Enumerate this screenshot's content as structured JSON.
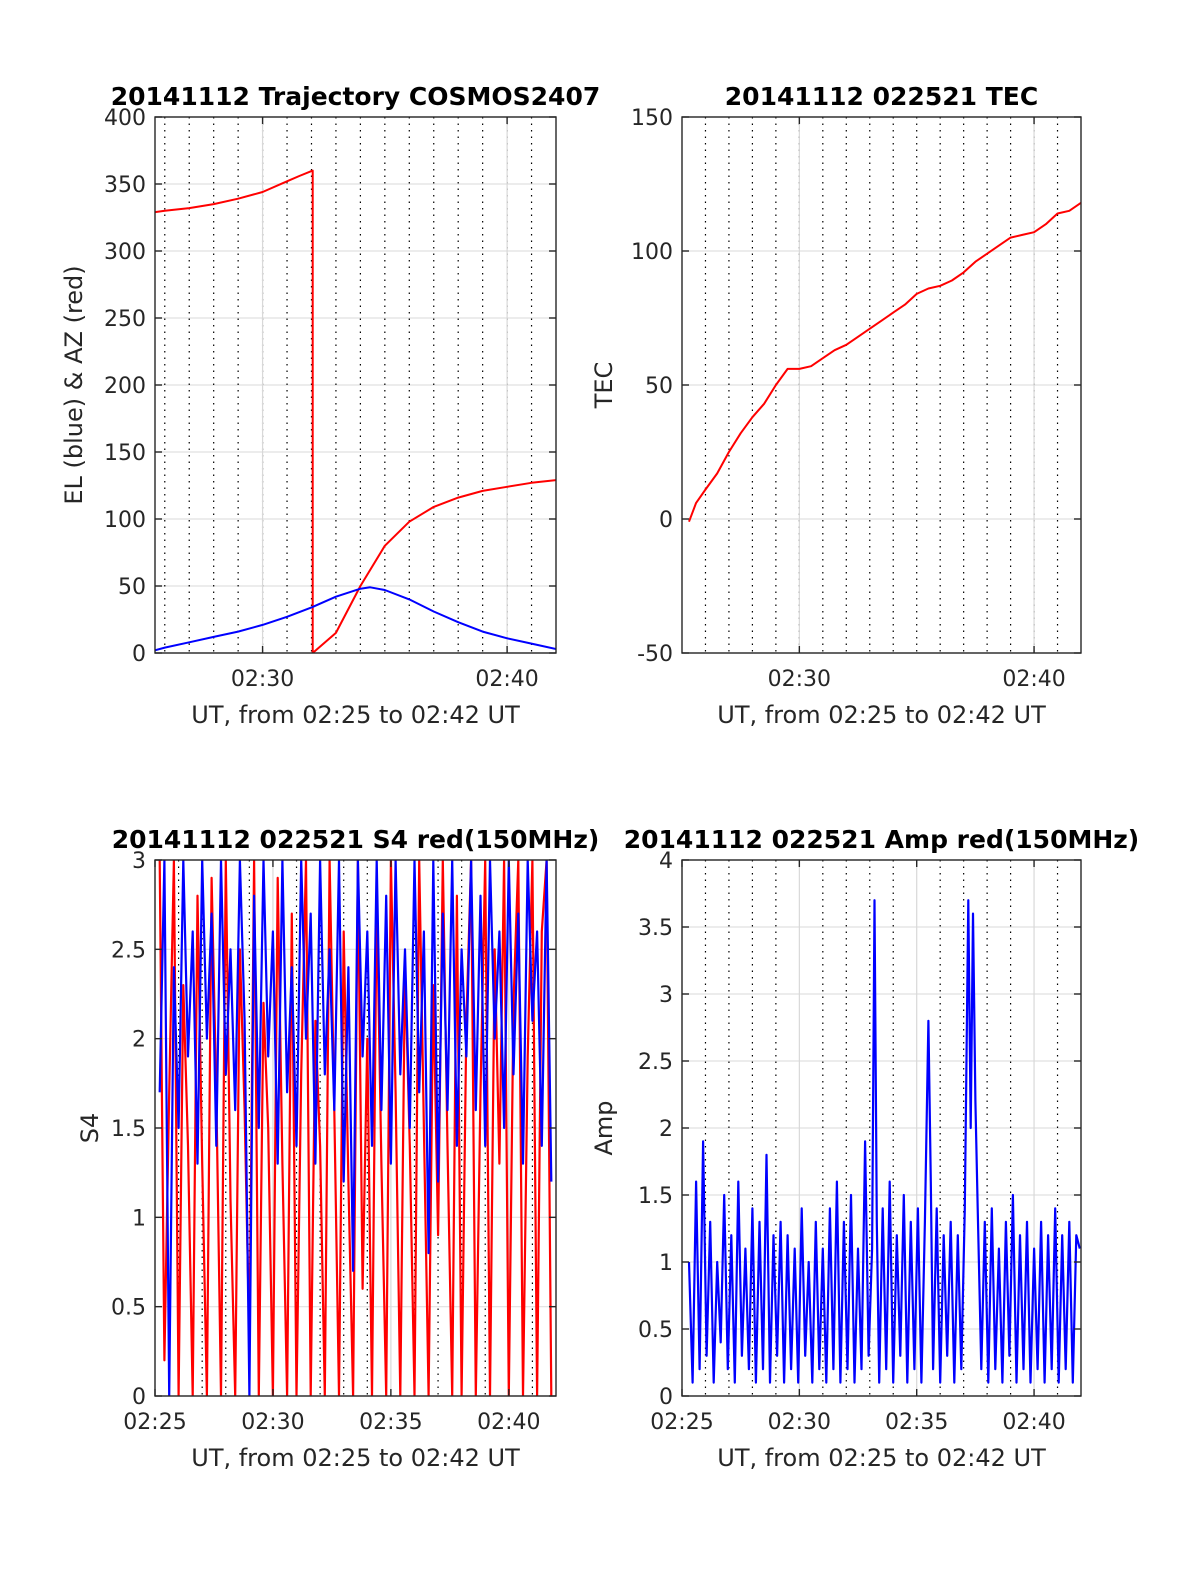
{
  "chart_data": [
    {
      "id": "trajectory",
      "type": "line",
      "title": "20141112 Trajectory COSMOS2407",
      "xlabel": "UT, from 02:25 to 02:42 UT",
      "ylabel": "EL (blue) & AZ (red)",
      "xlim": [
        25.6,
        42.0
      ],
      "ylim": [
        0,
        400
      ],
      "xtick_values": [
        30,
        40
      ],
      "xtick_labels": [
        "02:30",
        "02:40"
      ],
      "ytick_values": [
        0,
        50,
        100,
        150,
        200,
        250,
        300,
        350,
        400
      ],
      "ytick_labels": [
        "0",
        "50",
        "100",
        "150",
        "200",
        "250",
        "300",
        "350",
        "400"
      ],
      "minor_grid_x": [
        26,
        27,
        28,
        29,
        30,
        31,
        32,
        33,
        34,
        35,
        36,
        37,
        38,
        39,
        40,
        41
      ],
      "grid": true,
      "series": [
        {
          "color": "#ff0000",
          "x": [
            25.6,
            26,
            27,
            28,
            29,
            30,
            31,
            31.5,
            32.05,
            32.05,
            33,
            34,
            35,
            36,
            37,
            38,
            39,
            40,
            41,
            42
          ],
          "y": [
            329,
            330,
            332,
            335,
            339,
            344,
            352,
            356,
            360,
            0,
            15,
            50,
            80,
            98,
            109,
            116,
            121,
            124,
            127,
            129
          ]
        },
        {
          "color": "#0000ff",
          "x": [
            25.6,
            26,
            27,
            28,
            29,
            30,
            31,
            32,
            33,
            34,
            34.4,
            35,
            36,
            37,
            38,
            39,
            40,
            41,
            42
          ],
          "y": [
            2,
            4,
            8,
            12,
            16,
            21,
            27,
            34,
            42,
            48,
            49,
            47,
            40,
            31,
            23,
            16,
            11,
            7,
            3
          ]
        }
      ]
    },
    {
      "id": "tec",
      "type": "line",
      "title": "20141112 022521 TEC",
      "xlabel": "UT, from 02:25 to 02:42 UT",
      "ylabel": "TEC",
      "xlim": [
        25.0,
        42.0
      ],
      "ylim": [
        -50,
        150
      ],
      "xtick_values": [
        30,
        40
      ],
      "xtick_labels": [
        "02:30",
        "02:40"
      ],
      "ytick_values": [
        -50,
        0,
        50,
        100,
        150
      ],
      "ytick_labels": [
        "-50",
        "0",
        "50",
        "100",
        "150"
      ],
      "minor_grid_x": [
        26,
        27,
        28,
        29,
        30,
        31,
        32,
        33,
        34,
        35,
        36,
        37,
        38,
        39,
        40,
        41
      ],
      "grid": true,
      "series": [
        {
          "color": "#ff0000",
          "x": [
            25.3,
            25.6,
            26,
            26.5,
            27,
            27.5,
            28,
            28.5,
            29,
            29.5,
            30,
            30.5,
            31,
            31.5,
            32,
            32.5,
            33,
            33.5,
            34,
            34.5,
            35,
            35.5,
            36,
            36.5,
            37,
            37.5,
            38,
            38.5,
            39,
            39.5,
            40,
            40.5,
            41,
            41.5,
            42
          ],
          "y": [
            -1,
            6,
            11,
            17,
            25,
            32,
            38,
            43,
            50,
            56,
            56,
            57,
            60,
            63,
            65,
            68,
            71,
            74,
            77,
            80,
            84,
            86,
            87,
            89,
            92,
            96,
            99,
            102,
            105,
            106,
            107,
            110,
            114,
            115,
            118
          ]
        }
      ]
    },
    {
      "id": "s4",
      "type": "line",
      "title": "20141112 022521 S4 red(150MHz)",
      "xlabel": "UT, from 02:25 to 02:42 UT",
      "ylabel": "S4",
      "xlim": [
        25.0,
        42.0
      ],
      "ylim": [
        0,
        3
      ],
      "xtick_values": [
        25,
        30,
        35,
        40
      ],
      "xtick_labels": [
        "02:25",
        "02:30",
        "02:35",
        "02:40"
      ],
      "ytick_values": [
        0,
        0.5,
        1,
        1.5,
        2,
        2.5,
        3
      ],
      "ytick_labels": [
        "0",
        "0.5",
        "1",
        "1.5",
        "2",
        "2.5",
        "3"
      ],
      "minor_grid_x": [
        26,
        27,
        28,
        29,
        31,
        32,
        33,
        34,
        36,
        37,
        38,
        39,
        41
      ],
      "grid": true,
      "series": [
        {
          "color": "#ff0000",
          "x": [
            25.2,
            25.4,
            25.6,
            25.8,
            26.0,
            26.2,
            26.4,
            26.6,
            26.8,
            27.0,
            27.2,
            27.4,
            27.6,
            27.8,
            28.0,
            28.2,
            28.4,
            28.6,
            28.8,
            29.0,
            29.2,
            29.4,
            29.6,
            29.8,
            30.0,
            30.2,
            30.4,
            30.6,
            30.8,
            31.0,
            31.2,
            31.4,
            31.6,
            31.8,
            32.0,
            32.2,
            32.4,
            32.6,
            32.8,
            33.0,
            33.2,
            33.4,
            33.6,
            33.8,
            34.0,
            34.2,
            34.4,
            34.6,
            34.8,
            35.0,
            35.2,
            35.4,
            35.6,
            35.8,
            36.0,
            36.2,
            36.4,
            36.6,
            36.8,
            37.0,
            37.2,
            37.4,
            37.6,
            37.8,
            38.0,
            38.2,
            38.4,
            38.6,
            38.8,
            39.0,
            39.2,
            39.4,
            39.6,
            39.8,
            40.0,
            40.2,
            40.4,
            40.6,
            40.8,
            41.0,
            41.2,
            41.4,
            41.6,
            41.8
          ],
          "y": [
            3.0,
            0.2,
            1.7,
            3.0,
            0.0,
            2.3,
            1.4,
            0.0,
            2.8,
            1.3,
            0.0,
            2.9,
            1.7,
            0.0,
            3.0,
            1.1,
            0.0,
            2.5,
            1.6,
            0.3,
            3.0,
            0.0,
            2.2,
            1.5,
            0.0,
            2.9,
            1.3,
            0.0,
            2.7,
            0.0,
            1.8,
            3.0,
            0.0,
            2.1,
            1.4,
            0.0,
            3.0,
            1.6,
            0.0,
            2.6,
            1.2,
            0.0,
            3.0,
            0.6,
            2.0,
            0.0,
            2.8,
            1.3,
            0.0,
            3.0,
            1.7,
            0.0,
            2.4,
            1.4,
            0.0,
            3.0,
            1.5,
            0.0,
            2.3,
            0.9,
            3.0,
            1.4,
            0.0,
            2.8,
            0.0,
            2.1,
            3.0,
            0.0,
            1.7,
            3.0,
            0.0,
            2.5,
            1.3,
            3.0,
            0.0,
            2.2,
            3.0,
            0.0,
            1.9,
            3.0,
            0.0,
            2.6,
            3.0,
            0.0
          ]
        },
        {
          "color": "#0000ff",
          "x": [
            25.2,
            25.4,
            25.6,
            25.8,
            26.0,
            26.2,
            26.4,
            26.6,
            26.8,
            27.0,
            27.2,
            27.4,
            27.6,
            27.8,
            28.0,
            28.2,
            28.4,
            28.6,
            28.8,
            29.0,
            29.2,
            29.4,
            29.6,
            29.8,
            30.0,
            30.2,
            30.4,
            30.6,
            30.8,
            31.0,
            31.2,
            31.4,
            31.6,
            31.8,
            32.0,
            32.2,
            32.4,
            32.6,
            32.8,
            33.0,
            33.2,
            33.4,
            33.6,
            33.8,
            34.0,
            34.2,
            34.4,
            34.6,
            34.8,
            35.0,
            35.2,
            35.4,
            35.6,
            35.8,
            36.0,
            36.2,
            36.4,
            36.6,
            36.8,
            37.0,
            37.2,
            37.4,
            37.6,
            37.8,
            38.0,
            38.2,
            38.4,
            38.6,
            38.8,
            39.0,
            39.2,
            39.4,
            39.6,
            39.8,
            40.0,
            40.2,
            40.4,
            40.6,
            40.8,
            41.0,
            41.2,
            41.4,
            41.6,
            41.8
          ],
          "y": [
            1.7,
            3.0,
            0.0,
            2.4,
            1.5,
            3.0,
            1.9,
            2.6,
            1.3,
            3.0,
            2.0,
            2.7,
            1.4,
            3.0,
            1.8,
            2.5,
            1.6,
            3.0,
            2.1,
            0.0,
            2.8,
            1.5,
            3.0,
            1.9,
            2.6,
            1.3,
            3.0,
            1.7,
            2.4,
            1.4,
            3.0,
            2.0,
            2.7,
            1.3,
            3.0,
            1.8,
            2.5,
            1.6,
            3.0,
            1.2,
            2.4,
            0.7,
            3.0,
            1.9,
            2.6,
            1.4,
            3.0,
            1.6,
            2.8,
            1.3,
            3.0,
            1.8,
            2.5,
            1.5,
            3.0,
            1.7,
            2.6,
            0.8,
            3.0,
            1.2,
            2.7,
            1.6,
            3.0,
            1.4,
            2.5,
            1.9,
            3.0,
            1.6,
            2.8,
            1.4,
            3.0,
            2.0,
            2.6,
            1.5,
            3.0,
            1.8,
            2.7,
            1.3,
            3.0,
            2.1,
            2.6,
            1.4,
            3.0,
            1.2
          ]
        }
      ]
    },
    {
      "id": "amp",
      "type": "line",
      "title": "20141112 022521 Amp red(150MHz)",
      "xlabel": "UT, from 02:25 to 02:42 UT",
      "ylabel": "Amp",
      "xlim": [
        25.0,
        42.0
      ],
      "ylim": [
        0,
        4
      ],
      "xtick_values": [
        25,
        30,
        35,
        40
      ],
      "xtick_labels": [
        "02:25",
        "02:30",
        "02:35",
        "02:40"
      ],
      "ytick_values": [
        0,
        0.5,
        1,
        1.5,
        2,
        2.5,
        3,
        3.5,
        4
      ],
      "ytick_labels": [
        "0",
        "0.5",
        "1",
        "1.5",
        "2",
        "2.5",
        "3",
        "3.5",
        "4"
      ],
      "minor_grid_x": [
        26,
        27,
        28,
        29,
        31,
        32,
        33,
        34,
        36,
        37,
        38,
        39,
        41
      ],
      "grid": true,
      "series": [
        {
          "color": "#0000ff",
          "x": [
            25.3,
            25.45,
            25.6,
            25.75,
            25.9,
            26.05,
            26.2,
            26.35,
            26.5,
            26.65,
            26.8,
            26.95,
            27.1,
            27.25,
            27.4,
            27.55,
            27.7,
            27.85,
            28.0,
            28.15,
            28.3,
            28.45,
            28.6,
            28.75,
            28.9,
            29.05,
            29.2,
            29.35,
            29.5,
            29.65,
            29.8,
            29.95,
            30.1,
            30.25,
            30.4,
            30.55,
            30.7,
            30.85,
            31.0,
            31.15,
            31.3,
            31.45,
            31.6,
            31.75,
            31.9,
            32.05,
            32.2,
            32.35,
            32.5,
            32.65,
            32.8,
            32.95,
            33.1,
            33.2,
            33.3,
            33.4,
            33.55,
            33.7,
            33.85,
            34.0,
            34.15,
            34.3,
            34.45,
            34.6,
            34.75,
            34.9,
            35.05,
            35.2,
            35.35,
            35.5,
            35.6,
            35.7,
            35.85,
            36.0,
            36.15,
            36.3,
            36.45,
            36.6,
            36.75,
            36.9,
            37.05,
            37.2,
            37.3,
            37.4,
            37.5,
            37.6,
            37.75,
            37.9,
            38.05,
            38.2,
            38.35,
            38.5,
            38.65,
            38.8,
            38.95,
            39.1,
            39.25,
            39.4,
            39.55,
            39.7,
            39.85,
            40.0,
            40.15,
            40.3,
            40.45,
            40.6,
            40.75,
            40.9,
            41.05,
            41.2,
            41.35,
            41.5,
            41.65,
            41.8,
            41.95
          ],
          "y": [
            1.0,
            0.1,
            1.6,
            0.2,
            1.9,
            0.3,
            1.3,
            0.1,
            1.0,
            0.4,
            1.5,
            0.2,
            1.2,
            0.1,
            1.6,
            0.3,
            1.1,
            0.2,
            1.4,
            0.1,
            1.3,
            0.2,
            1.8,
            0.1,
            1.2,
            0.3,
            1.3,
            0.1,
            1.2,
            0.2,
            1.1,
            0.1,
            1.4,
            0.3,
            1.0,
            0.1,
            1.3,
            0.2,
            1.1,
            0.1,
            1.4,
            0.2,
            1.6,
            0.1,
            1.3,
            0.2,
            1.5,
            0.1,
            1.1,
            0.2,
            1.9,
            0.3,
            1.1,
            3.7,
            1.3,
            0.1,
            1.4,
            0.2,
            1.6,
            0.1,
            1.2,
            0.3,
            1.5,
            0.1,
            1.3,
            0.2,
            1.4,
            0.1,
            1.3,
            2.8,
            1.6,
            0.2,
            1.4,
            0.1,
            1.2,
            0.3,
            1.3,
            0.1,
            1.2,
            0.2,
            1.4,
            3.7,
            2.0,
            3.6,
            2.2,
            1.4,
            0.2,
            1.3,
            0.1,
            1.4,
            0.2,
            1.1,
            0.1,
            1.3,
            0.3,
            1.5,
            0.1,
            1.2,
            0.2,
            1.3,
            0.1,
            1.1,
            0.2,
            1.3,
            0.1,
            1.2,
            0.2,
            1.4,
            0.1,
            1.2,
            0.2,
            1.3,
            0.1,
            1.2,
            1.1
          ]
        }
      ]
    }
  ]
}
